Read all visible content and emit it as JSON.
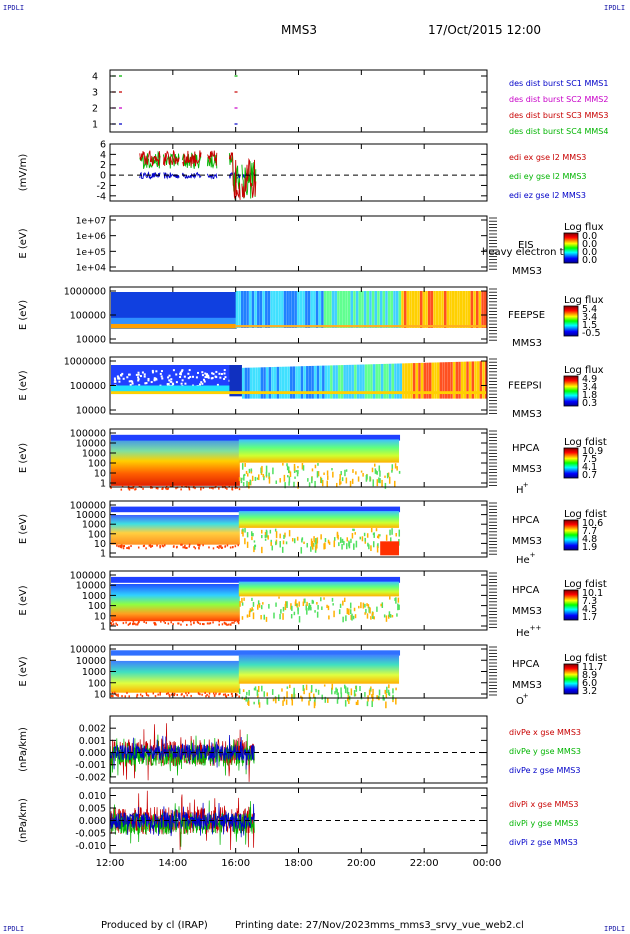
{
  "corner_labels": {
    "tl": "IPDLI",
    "tr": "IPDLI",
    "bl": "IPDLI",
    "br": "IPDLI"
  },
  "header": {
    "spacecraft": "MMS3",
    "date_time": "17/Oct/2015 12:00"
  },
  "footer": {
    "produced_by": "Produced by cl (IRAP)",
    "printing_date": "Printing date: 27/Nov/2023",
    "file": "mms_mms3_srvy_vue_web2.cl"
  },
  "colors": {
    "mms1": "#0000c8",
    "mms2": "#c800c8",
    "mms3": "#c80000",
    "mms4": "#00b400",
    "ex": "#c80000",
    "ey": "#00b400",
    "ez": "#0000c8"
  },
  "time_axis": {
    "ticks": [
      "12:00",
      "14:00",
      "16:00",
      "18:00",
      "20:00",
      "22:00",
      "00:00"
    ]
  },
  "chart_data": [
    {
      "type": "line",
      "name": "burst",
      "yticks": [
        "4",
        "3",
        "2",
        "1"
      ],
      "legend": [
        "des dist burst SC1 MMS1",
        "des dist burst SC2 MMS2",
        "des dist burst SC3 MMS3",
        "des dist burst SC4 MMS4"
      ],
      "x_hours": [
        12.0,
        12.5,
        15.9,
        16.2
      ],
      "series": [
        {
          "name": "des dist burst SC1 MMS1",
          "level": 1,
          "segments": [
            [
              12.0,
              12.5
            ],
            [
              15.9,
              16.2
            ]
          ]
        },
        {
          "name": "des dist burst SC2 MMS2",
          "level": 2,
          "segments": [
            [
              12.0,
              12.5
            ],
            [
              15.9,
              16.2
            ]
          ]
        },
        {
          "name": "des dist burst SC3 MMS3",
          "level": 3,
          "segments": [
            [
              12.0,
              12.5
            ],
            [
              15.9,
              16.2
            ]
          ]
        },
        {
          "name": "des dist burst SC4 MMS4",
          "level": 4,
          "segments": [
            [
              12.0,
              12.5
            ],
            [
              15.9,
              16.2
            ]
          ]
        }
      ]
    },
    {
      "type": "line",
      "name": "edi",
      "ylabel": "(mV/m)",
      "ylim": [
        -5,
        6
      ],
      "yticks": [
        "6",
        "4",
        "2",
        "0",
        "-2",
        "-4"
      ],
      "legend": [
        "edi ex gse l2 MMS3",
        "edi ey gse l2 MMS3",
        "edi ez gse l2 MMS3"
      ],
      "x_range_hours": [
        12.9,
        16.7
      ]
    },
    {
      "type": "heatmap",
      "name": "eis",
      "ylabel": "E (eV)",
      "yticks": [
        "1e+07",
        "1e+06",
        "1e+05",
        "1e+04"
      ],
      "instrument": "EIS",
      "spacecraft": "MMS3",
      "species": "heavy electron to",
      "colorbar": {
        "label": "Log flux",
        "ticks": [
          "0.0",
          "0.0",
          "0.0",
          "0.0"
        ]
      }
    },
    {
      "type": "heatmap",
      "name": "feepse",
      "ylabel": "E (eV)",
      "yticks": [
        "1000000",
        "100000",
        "10000"
      ],
      "instrument": "FEEPSE",
      "spacecraft": "MMS3",
      "colorbar": {
        "label": "Log flux",
        "ticks": [
          "5.4",
          "3.4",
          "1.5",
          "-0.5"
        ]
      }
    },
    {
      "type": "heatmap",
      "name": "feepsi",
      "ylabel": "E (eV)",
      "yticks": [
        "1000000",
        "100000",
        "10000"
      ],
      "instrument": "FEEPSI",
      "spacecraft": "MMS3",
      "colorbar": {
        "label": "Log flux",
        "ticks": [
          "4.9",
          "3.4",
          "1.8",
          "0.3"
        ]
      }
    },
    {
      "type": "heatmap",
      "name": "hpca-h",
      "ylabel": "E (eV)",
      "yticks": [
        "100000",
        "10000",
        "1000",
        "100",
        "10",
        "1"
      ],
      "instrument": "HPCA",
      "spacecraft": "MMS3",
      "species_base": "H",
      "species_sup": "+",
      "colorbar": {
        "label": "Log fdist",
        "ticks": [
          "10.9",
          "7.5",
          "4.1",
          "0.7"
        ]
      }
    },
    {
      "type": "heatmap",
      "name": "hpca-he",
      "ylabel": "E (eV)",
      "yticks": [
        "100000",
        "10000",
        "1000",
        "100",
        "10",
        "1"
      ],
      "instrument": "HPCA",
      "spacecraft": "MMS3",
      "species_base": "He",
      "species_sup": "+",
      "colorbar": {
        "label": "Log fdist",
        "ticks": [
          "10.6",
          "7.7",
          "4.8",
          "1.9"
        ]
      }
    },
    {
      "type": "heatmap",
      "name": "hpca-he2",
      "ylabel": "E (eV)",
      "yticks": [
        "100000",
        "10000",
        "1000",
        "100",
        "10",
        "1"
      ],
      "instrument": "HPCA",
      "spacecraft": "MMS3",
      "species_base": "He",
      "species_sup": "++",
      "colorbar": {
        "label": "Log fdist",
        "ticks": [
          "10.1",
          "7.3",
          "4.5",
          "1.7"
        ]
      }
    },
    {
      "type": "heatmap",
      "name": "hpca-o",
      "ylabel": "E (eV)",
      "yticks": [
        "100000",
        "10000",
        "1000",
        "100",
        "10"
      ],
      "instrument": "HPCA",
      "spacecraft": "MMS3",
      "species_base": "O",
      "species_sup": "+",
      "colorbar": {
        "label": "Log fdist",
        "ticks": [
          "11.7",
          "8.9",
          "6.0",
          "3.2"
        ]
      }
    },
    {
      "type": "line",
      "name": "divpe",
      "ylabel": "(nPa/km)",
      "ylim": [
        -0.0025,
        0.003
      ],
      "yticks": [
        "0.002",
        "0.001",
        "0.000",
        "-0.001",
        "-0.002"
      ],
      "legend": [
        "divPe x gse MMS3",
        "divPe y gse MMS3",
        "divPe z gse MMS3"
      ],
      "x_range_hours": [
        12.0,
        16.6
      ]
    },
    {
      "type": "line",
      "name": "divpi",
      "ylabel": "(nPa/km)",
      "ylim": [
        -0.013,
        0.013
      ],
      "yticks": [
        "0.010",
        "0.005",
        "0.000",
        "-0.005",
        "-0.010"
      ],
      "legend": [
        "divPi x gse MMS3",
        "divPi y gse MMS3",
        "divPi z gse MMS3"
      ],
      "x_range_hours": [
        12.0,
        16.6
      ]
    }
  ]
}
